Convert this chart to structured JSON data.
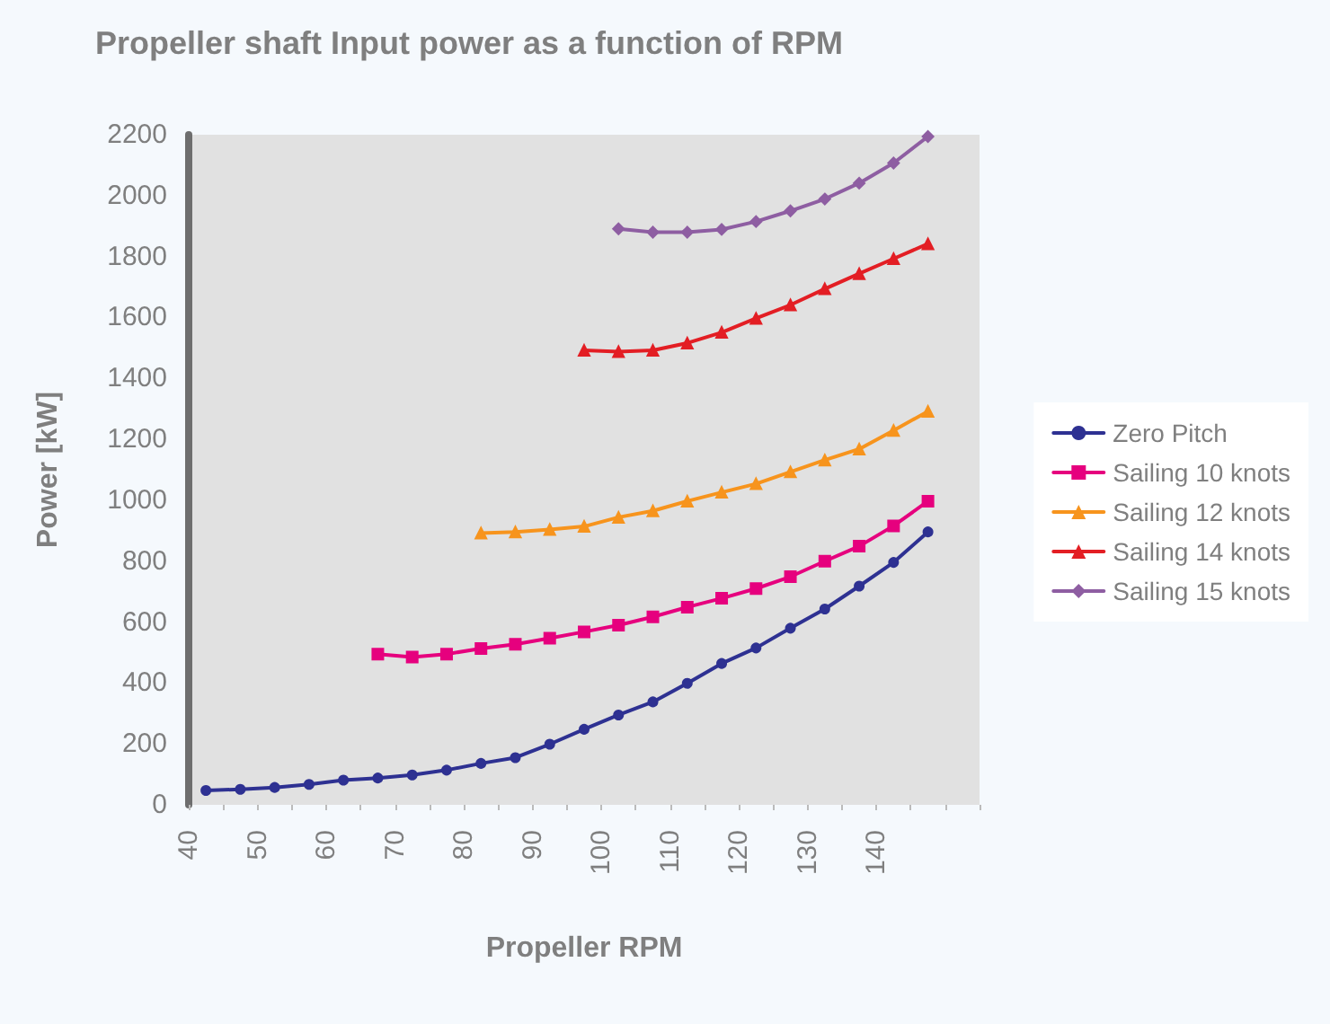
{
  "chart_data": {
    "type": "line",
    "title": "Propeller shaft Input power as a function of RPM",
    "xlabel": "Propeller RPM",
    "ylabel": "Power [kW]",
    "x": [
      42.5,
      47.5,
      52.5,
      57.5,
      62.5,
      67.5,
      72.5,
      77.5,
      82.5,
      87.5,
      92.5,
      97.5,
      102.5,
      107.5,
      112.5,
      117.5,
      122.5,
      127.5,
      132.5,
      137.5,
      142.5,
      147.5
    ],
    "series": [
      {
        "name": "Zero Pitch",
        "color": "#2e3192",
        "marker": "circle",
        "values": [
          47,
          51,
          57,
          67,
          81,
          88,
          98,
          114,
          136,
          155,
          199,
          248,
          295,
          338,
          399,
          464,
          515,
          580,
          643,
          718,
          796,
          896
        ]
      },
      {
        "name": "Sailing 10 knots",
        "color": "#e6007e",
        "marker": "square",
        "values": [
          null,
          null,
          null,
          null,
          null,
          495,
          485,
          495,
          513,
          527,
          547,
          568,
          590,
          617,
          649,
          678,
          710,
          749,
          800,
          849,
          916,
          997
        ]
      },
      {
        "name": "Sailing 12 knots",
        "color": "#f7941d",
        "marker": "triangle",
        "values": [
          null,
          null,
          null,
          null,
          null,
          null,
          null,
          null,
          892,
          896,
          904,
          914,
          944,
          965,
          997,
          1026,
          1054,
          1093,
          1132,
          1168,
          1229,
          1292
        ]
      },
      {
        "name": "Sailing 14 knots",
        "color": "#e31e24",
        "marker": "triangle",
        "values": [
          null,
          null,
          null,
          null,
          null,
          null,
          null,
          null,
          null,
          null,
          null,
          1492,
          1488,
          1492,
          1516,
          1551,
          1597,
          1641,
          1694,
          1744,
          1793,
          1842
        ]
      },
      {
        "name": "Sailing 15 knots",
        "color": "#8e5ea2",
        "marker": "diamond",
        "values": [
          null,
          null,
          null,
          null,
          null,
          null,
          null,
          null,
          null,
          null,
          null,
          null,
          1891,
          1880,
          1880,
          1889,
          1915,
          1950,
          1989,
          2041,
          2107,
          2194
        ]
      }
    ],
    "xlim": [
      40,
      155
    ],
    "xticks": [
      40,
      {
        "value": 45,
        "label": null
      },
      50,
      {
        "value": 55,
        "label": null
      },
      60,
      {
        "value": 65,
        "label": null
      },
      70,
      {
        "value": 75,
        "label": null
      },
      80,
      {
        "value": 85,
        "label": null
      },
      90,
      {
        "value": 95,
        "label": null
      },
      100,
      {
        "value": 105,
        "label": null
      },
      110,
      {
        "value": 115,
        "label": null
      },
      120,
      {
        "value": 125,
        "label": null
      },
      130,
      {
        "value": 135,
        "label": null
      },
      140,
      {
        "value": 145,
        "label": null
      },
      {
        "value": 150,
        "label": null
      },
      {
        "value": 155,
        "label": null
      }
    ],
    "ylim": [
      0,
      2200
    ],
    "yticks": [
      0,
      200,
      400,
      600,
      800,
      1000,
      1200,
      1400,
      1600,
      1800,
      2000,
      2200
    ],
    "grid": false,
    "legend": "right",
    "line_style": "solid"
  }
}
